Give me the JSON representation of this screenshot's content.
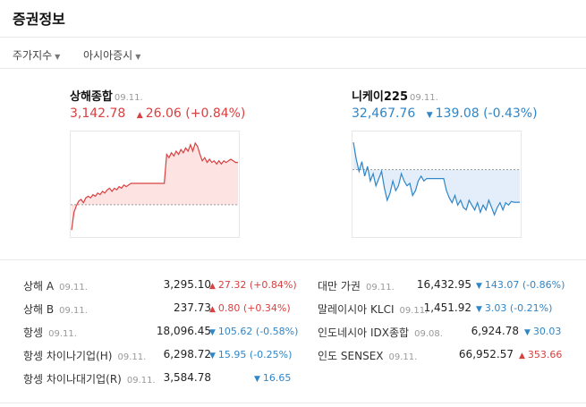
{
  "page": {
    "title": "증권정보"
  },
  "filters": [
    {
      "label": "주가지수"
    },
    {
      "label": "아시아증시"
    }
  ],
  "indices": [
    {
      "name": "상해종합",
      "date": "09.11.",
      "price": "3,142.78",
      "arrow": "▲",
      "change": "26.06",
      "pct": "(+0.84%)",
      "direction": "up",
      "color": "#d94040",
      "fill": "#fde4e2"
    },
    {
      "name": "니케이225",
      "date": "09.11.",
      "price": "32,467.76",
      "arrow": "▼",
      "change": "139.08",
      "pct": "(-0.43%)",
      "direction": "down",
      "color": "#2f86c8",
      "fill": "#e3eefa"
    }
  ],
  "markets_left": [
    {
      "name": "상해 A",
      "date": "09.11.",
      "price": "3,295.10",
      "arrow": "▲",
      "change": "27.32",
      "pct": "(+0.84%)",
      "direction": "up"
    },
    {
      "name": "상해 B",
      "date": "09.11.",
      "price": "237.73",
      "arrow": "▲",
      "change": "0.80",
      "pct": "(+0.34%)",
      "direction": "up"
    },
    {
      "name": "항셍",
      "date": "09.11.",
      "price": "18,096.45",
      "arrow": "▼",
      "change": "105.62",
      "pct": "(-0.58%)",
      "direction": "down"
    },
    {
      "name": "항셍 차이나기업(H)",
      "date": "09.11.",
      "price": "6,298.72",
      "arrow": "▼",
      "change": "15.95",
      "pct": "(-0.25%)",
      "direction": "down"
    },
    {
      "name": "항셍 차이나대기업(R)",
      "date": "09.11.",
      "price": "3,584.78",
      "arrow": "▼",
      "change": "16.65",
      "pct": "",
      "direction": "down"
    }
  ],
  "markets_right": [
    {
      "name": "대만 가권",
      "date": "09.11.",
      "price": "16,432.95",
      "arrow": "▼",
      "change": "143.07",
      "pct": "(-0.86%)",
      "direction": "down"
    },
    {
      "name": "말레이시아 KLCI",
      "date": "09.11.",
      "price": "1,451.92",
      "arrow": "▼",
      "change": "3.03",
      "pct": "(-0.21%)",
      "direction": "down"
    },
    {
      "name": "인도네시아 IDX종합",
      "date": "09.08.",
      "price": "6,924.78",
      "arrow": "▼",
      "change": "30.03",
      "pct": "",
      "direction": "down"
    },
    {
      "name": "인도 SENSEX",
      "date": "09.11.",
      "price": "66,952.57",
      "arrow": "▲",
      "change": "353.66",
      "pct": "",
      "direction": "up"
    }
  ],
  "chart_data": [
    {
      "type": "area",
      "xlabel": "",
      "ylabel": "",
      "ylim": [
        3100,
        3160
      ],
      "baseline": 3116.72,
      "values": [
        3101,
        3112,
        3116,
        3119,
        3120,
        3118,
        3121,
        3122,
        3121,
        3123,
        3122,
        3124,
        3123,
        3125,
        3124,
        3126,
        3127,
        3125,
        3127,
        3126,
        3128,
        3127,
        3129,
        3128,
        3129,
        3130,
        3130,
        3130,
        3130,
        3130,
        3130,
        3130,
        3130,
        3130,
        3130,
        3130,
        3130,
        3130,
        3130,
        3130,
        3148,
        3146,
        3149,
        3147,
        3150,
        3148,
        3151,
        3149,
        3152,
        3150,
        3154,
        3150,
        3155,
        3153,
        3148,
        3144,
        3146,
        3143,
        3145,
        3143,
        3144,
        3142,
        3144,
        3142,
        3144,
        3143,
        3144,
        3145,
        3144,
        3143,
        3143
      ]
    },
    {
      "type": "area",
      "xlabel": "",
      "ylabel": "",
      "ylim": [
        32350,
        32750
      ],
      "baseline": 32606.84,
      "values": [
        32720,
        32650,
        32600,
        32640,
        32580,
        32620,
        32560,
        32590,
        32540,
        32570,
        32600,
        32530,
        32480,
        32510,
        32560,
        32520,
        32540,
        32590,
        32560,
        32540,
        32550,
        32500,
        32520,
        32560,
        32580,
        32560,
        32570,
        32570,
        32570,
        32570,
        32570,
        32570,
        32570,
        32520,
        32490,
        32470,
        32500,
        32460,
        32480,
        32450,
        32440,
        32480,
        32460,
        32440,
        32470,
        32430,
        32460,
        32440,
        32480,
        32450,
        32420,
        32450,
        32470,
        32440,
        32470,
        32460,
        32475,
        32472,
        32472,
        32472
      ]
    }
  ]
}
